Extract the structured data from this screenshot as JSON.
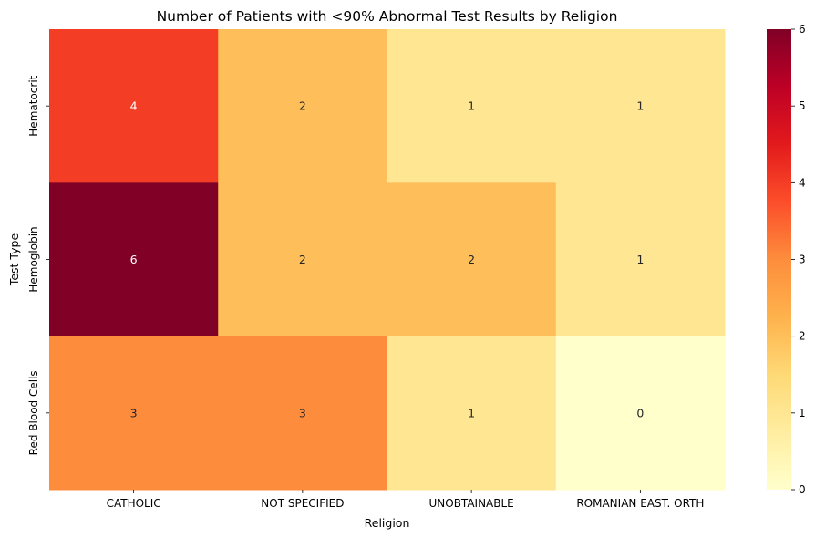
{
  "chart_data": {
    "type": "heatmap",
    "title": "Number of Patients with <90% Abnormal Test Results by Religion",
    "xlabel": "Religion",
    "ylabel": "Test Type",
    "x_categories": [
      "CATHOLIC",
      "NOT SPECIFIED",
      "UNOBTAINABLE",
      "ROMANIAN EAST. ORTH"
    ],
    "y_categories": [
      "Hematocrit",
      "Hemoglobin",
      "Red Blood Cells"
    ],
    "values": [
      [
        4,
        2,
        1,
        1
      ],
      [
        6,
        2,
        2,
        1
      ],
      [
        3,
        3,
        1,
        0
      ]
    ],
    "annotated": true,
    "colormap": "YlOrRd",
    "colormap_stops": [
      "#ffffcc",
      "#ffeda0",
      "#fed976",
      "#feb24c",
      "#fd8d3c",
      "#fc4e2a",
      "#e31a1c",
      "#bd0026",
      "#800026"
    ],
    "vmin": 0,
    "vmax": 6,
    "colorbar_ticks": [
      0,
      1,
      2,
      3,
      4,
      5,
      6
    ]
  }
}
